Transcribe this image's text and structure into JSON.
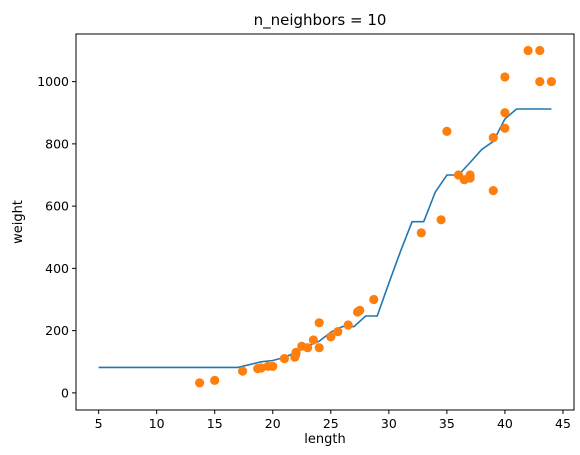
{
  "chart_data": {
    "type": "scatter",
    "title": "n_neighbors = 10",
    "xlabel": "length",
    "ylabel": "weight",
    "xlim": [
      3.05,
      45.95
    ],
    "ylim": [
      -55,
      1153
    ],
    "xticks": [
      5,
      10,
      15,
      20,
      25,
      30,
      35,
      40,
      45
    ],
    "yticks": [
      0,
      200,
      400,
      600,
      800,
      1000
    ],
    "grid": false,
    "colors": {
      "line": "#1f77b4",
      "scatter": "#ff7f0e"
    },
    "line_series": {
      "x": [
        5,
        17,
        19,
        20,
        21,
        22,
        23,
        24,
        25,
        26,
        27,
        28,
        29,
        30,
        31,
        32,
        33,
        34,
        35,
        36,
        37,
        38,
        39,
        40,
        41,
        42,
        43,
        44
      ],
      "y": [
        82,
        82,
        100,
        104,
        114,
        130,
        150,
        166,
        195,
        213,
        213,
        247,
        247,
        352,
        455,
        550,
        550,
        645,
        700,
        700,
        740,
        782,
        808,
        880,
        912,
        912,
        912,
        912
      ]
    },
    "scatter_series": {
      "x": [
        13.7,
        15.0,
        17.4,
        18.7,
        19.0,
        19.6,
        20.0,
        21.0,
        21.9,
        22.0,
        22.0,
        22.5,
        23.0,
        23.5,
        24.0,
        24.0,
        25.0,
        25.6,
        26.5,
        27.3,
        27.5,
        28.7,
        32.8,
        34.5,
        35.0,
        36.0,
        36.5,
        37.0,
        37.0,
        39.0,
        39.0,
        40.0,
        40.0,
        40.0,
        42.0,
        43.0,
        43.0,
        44.0
      ],
      "y": [
        32,
        40,
        70,
        78,
        80,
        85,
        85,
        110,
        115,
        125,
        130,
        150,
        145,
        170,
        145,
        225,
        180,
        197,
        218,
        260,
        265,
        300,
        514,
        556,
        840,
        700,
        685,
        690,
        700,
        650,
        820,
        850,
        900,
        1015,
        1100,
        1100,
        1000,
        1000
      ]
    }
  }
}
